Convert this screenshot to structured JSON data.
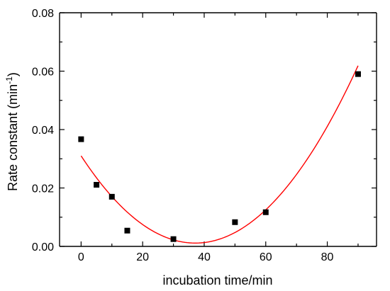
{
  "chart_data": {
    "type": "scatter",
    "title": "",
    "xlabel": "incubation time/min",
    "ylabel": "Rate constant (min",
    "ylabel_superscript": "-1",
    "ylabel_suffix": ")",
    "xlim": [
      -7,
      96
    ],
    "ylim": [
      0.0,
      0.08
    ],
    "xticks": [
      0,
      20,
      40,
      60,
      80
    ],
    "xtick_labels": [
      "0",
      "20",
      "40",
      "60",
      "80"
    ],
    "yticks": [
      0.0,
      0.02,
      0.04,
      0.06,
      0.08
    ],
    "ytick_labels": [
      "0.00",
      "0.02",
      "0.04",
      "0.06",
      "0.08"
    ],
    "grid": false,
    "legend": "none",
    "series": [
      {
        "kind": "scatter",
        "marker": "square",
        "color": "#000000",
        "x": [
          0,
          5,
          10,
          15,
          30,
          50,
          60,
          90
        ],
        "y": [
          0.0367,
          0.0211,
          0.017,
          0.0054,
          0.0025,
          0.0083,
          0.0117,
          0.059
        ]
      },
      {
        "kind": "fit",
        "color": "#ff0000",
        "fit": "quadratic",
        "coefficients": [
          0.031,
          -0.00161,
          2.17e-05
        ],
        "x_range": [
          0,
          90
        ]
      }
    ]
  }
}
